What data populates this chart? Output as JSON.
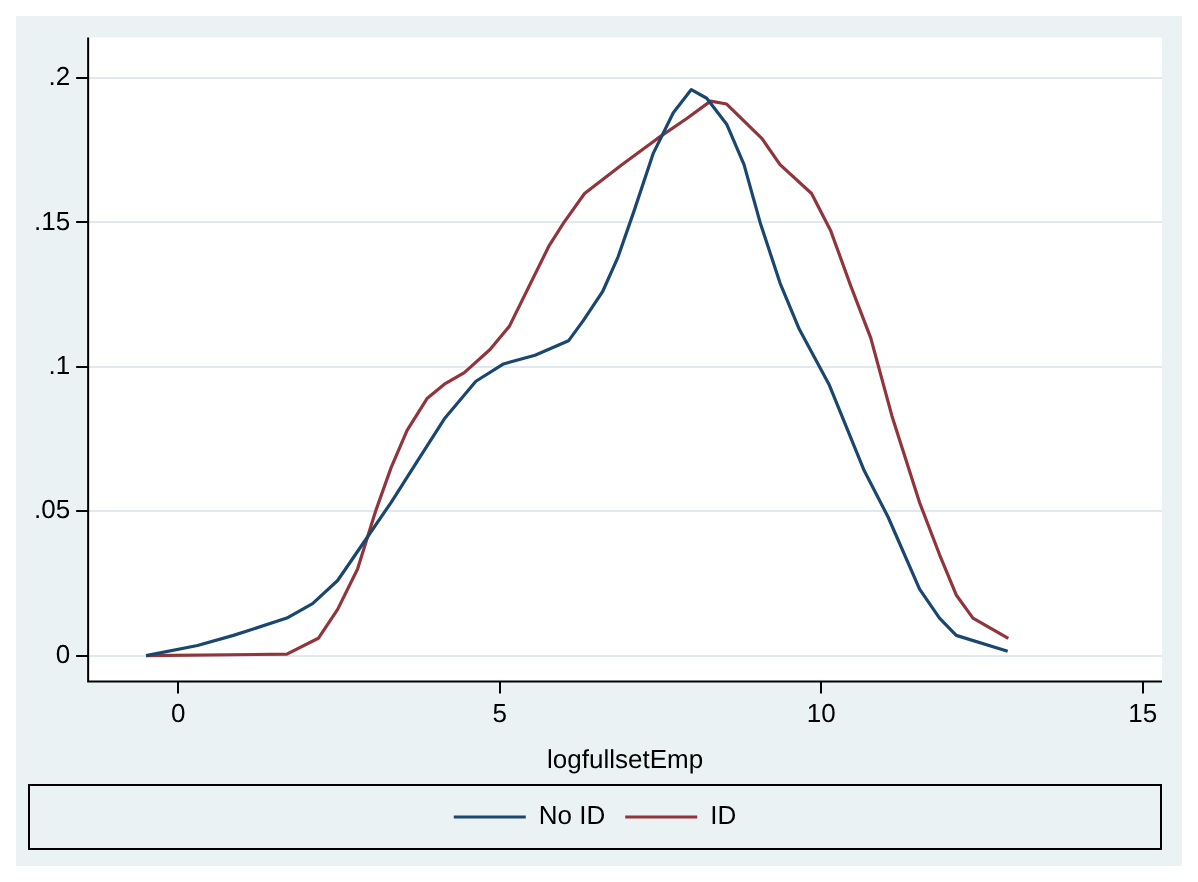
{
  "chart_data": {
    "type": "line",
    "xlabel": "logfullsetEmp",
    "xlim": [
      -1.4,
      15.3
    ],
    "xticks": [
      0,
      5,
      10,
      15
    ],
    "ylim": [
      -0.009,
      0.214
    ],
    "yticks": [
      {
        "value": 0,
        "label": "0"
      },
      {
        "value": 0.05,
        "label": ".05"
      },
      {
        "value": 0.1,
        "label": ".1"
      },
      {
        "value": 0.15,
        "label": ".15"
      },
      {
        "value": 0.2,
        "label": ".2"
      }
    ],
    "grid": "y",
    "legend": "bottom",
    "marker": "none",
    "line_style": "solid",
    "series": [
      {
        "name": "No ID",
        "color": "#1a476f",
        "x": [
          -0.5,
          0.3,
          0.86,
          1.69,
          2.09,
          2.48,
          2.88,
          3.31,
          3.71,
          4.14,
          4.63,
          5.06,
          5.55,
          6.07,
          6.3,
          6.6,
          6.84,
          7.09,
          7.39,
          7.7,
          7.98,
          8.22,
          8.53,
          8.8,
          9.05,
          9.36,
          9.66,
          10.12,
          10.67,
          11.04,
          11.53,
          11.84,
          12.1,
          12.9
        ],
        "values": [
          0,
          0.0035,
          0.007,
          0.013,
          0.018,
          0.026,
          0.039,
          0.053,
          0.067,
          0.082,
          0.095,
          0.101,
          0.104,
          0.109,
          0.116,
          0.126,
          0.138,
          0.154,
          0.174,
          0.188,
          0.196,
          0.193,
          0.184,
          0.17,
          0.15,
          0.129,
          0.113,
          0.094,
          0.064,
          0.048,
          0.023,
          0.013,
          0.007,
          0.0015
        ]
      },
      {
        "name": "ID",
        "color": "#90353b",
        "x": [
          -0.5,
          1.69,
          2.18,
          2.48,
          2.79,
          3.07,
          3.31,
          3.56,
          3.87,
          4.14,
          4.45,
          4.85,
          5.15,
          5.77,
          6.0,
          6.32,
          6.9,
          7.45,
          7.91,
          8.28,
          8.53,
          9.08,
          9.36,
          9.85,
          10.15,
          10.46,
          10.77,
          11.1,
          11.53,
          11.84,
          12.1,
          12.36,
          12.91
        ],
        "values": [
          0,
          0.0005,
          0.006,
          0.016,
          0.03,
          0.05,
          0.065,
          0.078,
          0.089,
          0.094,
          0.098,
          0.106,
          0.114,
          0.142,
          0.15,
          0.16,
          0.17,
          0.179,
          0.186,
          0.192,
          0.191,
          0.179,
          0.17,
          0.16,
          0.147,
          0.128,
          0.11,
          0.083,
          0.053,
          0.035,
          0.021,
          0.013,
          0.006
        ]
      }
    ]
  }
}
